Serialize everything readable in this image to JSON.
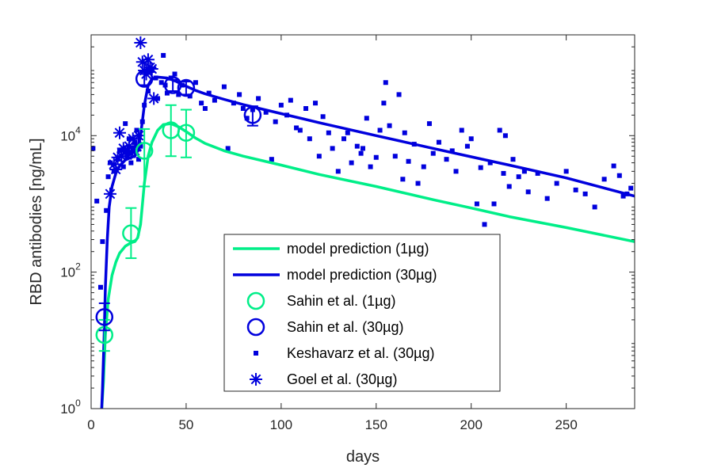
{
  "chart_data": {
    "type": "scatter",
    "xlabel": "days",
    "ylabel": "RBD antibodies [ng/mL]",
    "xlim": [
      0,
      286
    ],
    "ylim": [
      1,
      300000
    ],
    "yscale": "log",
    "grid": false,
    "legend_position": "bottom-center",
    "x_ticks": [
      0,
      50,
      100,
      150,
      200,
      250
    ],
    "y_ticks": [
      {
        "value": 1,
        "base": "10",
        "exp": "0"
      },
      {
        "value": 100,
        "base": "10",
        "exp": "2"
      },
      {
        "value": 10000,
        "base": "10",
        "exp": "4"
      }
    ],
    "colors": {
      "green": "#00ee88",
      "blue": "#0000dd",
      "axis": "#262626"
    },
    "series": [
      {
        "name": "model prediction (1µg)",
        "kind": "line",
        "color": "#00ee88",
        "points": [
          [
            5.5,
            0.9
          ],
          [
            6.5,
            2.5
          ],
          [
            7.5,
            12
          ],
          [
            9,
            40
          ],
          [
            11,
            90
          ],
          [
            13,
            140
          ],
          [
            15,
            190
          ],
          [
            18,
            240
          ],
          [
            21,
            270
          ],
          [
            23,
            280
          ],
          [
            24.5,
            320
          ],
          [
            26,
            500
          ],
          [
            28,
            2000
          ],
          [
            30,
            5000
          ],
          [
            32,
            8000
          ],
          [
            35,
            12000
          ],
          [
            38,
            14500
          ],
          [
            42,
            15000
          ],
          [
            46,
            13500
          ],
          [
            50,
            11500
          ],
          [
            55,
            9200
          ],
          [
            60,
            7700
          ],
          [
            70,
            6000
          ],
          [
            80,
            5000
          ],
          [
            100,
            3700
          ],
          [
            120,
            2700
          ],
          [
            150,
            1800
          ],
          [
            180,
            1150
          ],
          [
            200,
            870
          ],
          [
            220,
            650
          ],
          [
            250,
            450
          ],
          [
            286,
            280
          ]
        ]
      },
      {
        "name": "model prediction (30µg)",
        "kind": "line",
        "color": "#0000dd",
        "points": [
          [
            5.5,
            0.9
          ],
          [
            6,
            2
          ],
          [
            6.8,
            10
          ],
          [
            7.5,
            60
          ],
          [
            8.5,
            300
          ],
          [
            9.5,
            900
          ],
          [
            11,
            1800
          ],
          [
            13,
            2800
          ],
          [
            15,
            3600
          ],
          [
            18,
            4400
          ],
          [
            21,
            4800
          ],
          [
            23,
            5000
          ],
          [
            24.5,
            6000
          ],
          [
            26,
            10000
          ],
          [
            28,
            28000
          ],
          [
            30,
            55000
          ],
          [
            32,
            68000
          ],
          [
            35,
            72000
          ],
          [
            40,
            70000
          ],
          [
            45,
            62000
          ],
          [
            50,
            53000
          ],
          [
            55,
            46000
          ],
          [
            60,
            41000
          ],
          [
            70,
            34000
          ],
          [
            80,
            28500
          ],
          [
            100,
            21000
          ],
          [
            120,
            15500
          ],
          [
            150,
            10000
          ],
          [
            180,
            6500
          ],
          [
            200,
            4900
          ],
          [
            220,
            3700
          ],
          [
            250,
            2400
          ],
          [
            286,
            1300
          ]
        ]
      },
      {
        "name": "Sahin et al. (1µg)",
        "kind": "circle",
        "color": "#00ee88",
        "points": [
          {
            "x": 7,
            "y": 12,
            "lo": 7,
            "hi": 20
          },
          {
            "x": 21,
            "y": 370,
            "lo": 160,
            "hi": 870
          },
          {
            "x": 28,
            "y": 6000,
            "lo": 1800,
            "hi": 12500
          },
          {
            "x": 42,
            "y": 12000,
            "lo": 5000,
            "hi": 28000
          },
          {
            "x": 50,
            "y": 11000,
            "lo": 4800,
            "hi": 24000
          }
        ]
      },
      {
        "name": "Sahin et al. (30µg)",
        "kind": "circle",
        "color": "#0000dd",
        "points": [
          {
            "x": 7,
            "y": 22,
            "lo": 14,
            "hi": 35
          },
          {
            "x": 28,
            "y": 68000,
            "lo": 55000,
            "hi": 85000
          },
          {
            "x": 43,
            "y": 55000,
            "lo": 45000,
            "hi": 66000
          },
          {
            "x": 50,
            "y": 50000,
            "lo": 40000,
            "hi": 62000
          },
          {
            "x": 85,
            "y": 20000,
            "lo": 14000,
            "hi": 27000
          }
        ]
      },
      {
        "name": "Keshavarz et al. (30µg)",
        "kind": "square",
        "color": "#0000dd",
        "points": [
          [
            1,
            6500
          ],
          [
            3,
            1100
          ],
          [
            5,
            60
          ],
          [
            6,
            280
          ],
          [
            8,
            800
          ],
          [
            9,
            2500
          ],
          [
            10,
            4000
          ],
          [
            12,
            3000
          ],
          [
            14,
            4500
          ],
          [
            15,
            6000
          ],
          [
            17,
            3500
          ],
          [
            18,
            15000
          ],
          [
            19,
            5000
          ],
          [
            20,
            9000
          ],
          [
            21,
            4000
          ],
          [
            22,
            6500
          ],
          [
            23,
            8000
          ],
          [
            24,
            12000
          ],
          [
            25,
            4500
          ],
          [
            26,
            7000
          ],
          [
            27,
            16000
          ],
          [
            28,
            28000
          ],
          [
            30,
            45000
          ],
          [
            32,
            90000
          ],
          [
            34,
            70000
          ],
          [
            35,
            35000
          ],
          [
            37,
            60000
          ],
          [
            38,
            150000
          ],
          [
            39,
            55000
          ],
          [
            40,
            42000
          ],
          [
            42,
            70000
          ],
          [
            44,
            80000
          ],
          [
            46,
            40000
          ],
          [
            48,
            55000
          ],
          [
            52,
            38000
          ],
          [
            55,
            60000
          ],
          [
            58,
            30000
          ],
          [
            60,
            25000
          ],
          [
            62,
            42000
          ],
          [
            65,
            33000
          ],
          [
            70,
            52000
          ],
          [
            72,
            6500
          ],
          [
            75,
            30000
          ],
          [
            78,
            40000
          ],
          [
            80,
            25000
          ],
          [
            82,
            18000
          ],
          [
            85,
            24000
          ],
          [
            88,
            35000
          ],
          [
            92,
            22000
          ],
          [
            95,
            4500
          ],
          [
            97,
            16000
          ],
          [
            100,
            28000
          ],
          [
            103,
            20000
          ],
          [
            105,
            33000
          ],
          [
            108,
            13000
          ],
          [
            110,
            12000
          ],
          [
            113,
            25000
          ],
          [
            115,
            9000
          ],
          [
            118,
            30000
          ],
          [
            120,
            5000
          ],
          [
            122,
            19000
          ],
          [
            125,
            11000
          ],
          [
            127,
            6500
          ],
          [
            130,
            3000
          ],
          [
            133,
            9000
          ],
          [
            135,
            11000
          ],
          [
            137,
            4000
          ],
          [
            140,
            7000
          ],
          [
            142,
            5500
          ],
          [
            143,
            6500
          ],
          [
            145,
            18000
          ],
          [
            147,
            3500
          ],
          [
            150,
            4800
          ],
          [
            152,
            12000
          ],
          [
            154,
            30000
          ],
          [
            155,
            60000
          ],
          [
            157,
            14000
          ],
          [
            160,
            5000
          ],
          [
            162,
            40000
          ],
          [
            164,
            2300
          ],
          [
            165,
            11000
          ],
          [
            167,
            4200
          ],
          [
            170,
            7500
          ],
          [
            172,
            2000
          ],
          [
            175,
            3500
          ],
          [
            178,
            15000
          ],
          [
            180,
            5500
          ],
          [
            183,
            8000
          ],
          [
            187,
            4500
          ],
          [
            190,
            6000
          ],
          [
            192,
            3000
          ],
          [
            195,
            12000
          ],
          [
            198,
            7000
          ],
          [
            200,
            9000
          ],
          [
            203,
            1000
          ],
          [
            205,
            3400
          ],
          [
            207,
            500
          ],
          [
            210,
            4000
          ],
          [
            212,
            1000
          ],
          [
            215,
            12000
          ],
          [
            217,
            2800
          ],
          [
            218,
            10000
          ],
          [
            220,
            1800
          ],
          [
            222,
            4500
          ],
          [
            225,
            2500
          ],
          [
            228,
            3000
          ],
          [
            230,
            1500
          ],
          [
            235,
            2800
          ],
          [
            240,
            1200
          ],
          [
            245,
            2000
          ],
          [
            250,
            3000
          ],
          [
            255,
            1600
          ],
          [
            260,
            1400
          ],
          [
            265,
            900
          ],
          [
            270,
            2300
          ],
          [
            275,
            3600
          ],
          [
            278,
            2600
          ],
          [
            280,
            1300
          ],
          [
            282,
            1400
          ],
          [
            284,
            1700
          ]
        ]
      },
      {
        "name": "Goel et al. (30µg)",
        "kind": "asterisk",
        "color": "#0000dd",
        "points": [
          [
            10,
            1400
          ],
          [
            12,
            3800
          ],
          [
            13,
            3200
          ],
          [
            14,
            4800
          ],
          [
            15,
            11000
          ],
          [
            16,
            5000
          ],
          [
            17,
            6500
          ],
          [
            18,
            5800
          ],
          [
            19,
            6000
          ],
          [
            20,
            7000
          ],
          [
            21,
            5500
          ],
          [
            22,
            9000
          ],
          [
            23,
            6000
          ],
          [
            24,
            7000
          ],
          [
            25,
            10000
          ],
          [
            26,
            230000
          ],
          [
            27,
            120000
          ],
          [
            28,
            90000
          ],
          [
            29,
            80000
          ],
          [
            30,
            130000
          ],
          [
            31,
            100000
          ],
          [
            32,
            95000
          ],
          [
            33,
            35000
          ]
        ]
      }
    ],
    "legend": {
      "labels": [
        "model prediction (1µg)",
        "model prediction (30µg)",
        "Sahin et al. (1µg)",
        "Sahin et al. (30µg)",
        "Keshavarz et al. (30µg)",
        "Goel et al. (30µg)"
      ]
    }
  }
}
